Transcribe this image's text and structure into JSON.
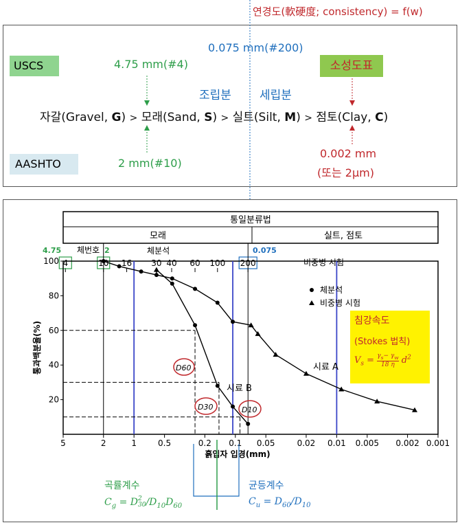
{
  "consistency_label": "연경도(軟硬度; consistency) = f(w)",
  "top_panel": {
    "sieve_200": "0.075 mm(#200)",
    "uscs_label": "USCS",
    "aashto_label": "AASHTO",
    "uscs_sieve4": "4.75 mm(#4)",
    "aashto_sieve10": "2 mm(#10)",
    "plasticity_chart": "소성도표",
    "coarse": "조립분",
    "fine": "세립분",
    "classification_line": {
      "gravel": "자갈(Gravel, ",
      "gravel_sym": "G",
      "sand": "모래(Sand, ",
      "sand_sym": "S",
      "silt": "실트(Silt, ",
      "silt_sym": "M",
      "clay": "점토(Clay, ",
      "clay_sym": "C",
      "close": ")",
      "gt": ">"
    },
    "clay_size": "0.002 mm",
    "clay_size_alt": "(또는 2μm)"
  },
  "chart_panel": {
    "unified_class": "통일분류법",
    "sand_header": "모래",
    "silt_clay_header": "실트, 점토",
    "sieve_no_label": "체번호",
    "sieve_analysis": "체분석",
    "hydrometer": "비중병 시험",
    "sieve_top_labels": [
      "4",
      "10",
      "16",
      "30",
      "40",
      "60",
      "100",
      "200"
    ],
    "annot_475": "4.75",
    "annot_2": "2",
    "annot_0075": "0.075",
    "ylabel": "통과백분율(%)",
    "xlabel": "흙입자 입경(mm)",
    "legend_sieve": "체분석",
    "legend_hydro": "비중병 시험",
    "sample_a": "시료 A",
    "sample_b": "시료 B",
    "d60": "D60",
    "d30": "D30",
    "d10": "D10",
    "stokes_title": "침강속도",
    "stokes_law": "(Stokes  법칙)"
  },
  "bottom": {
    "curvature_title": "곡률계수",
    "uniformity_title": "균등계수"
  },
  "colors": {
    "green": "#2e9e4a",
    "blue": "#1f6fbd",
    "red": "#c0282c",
    "uscs_bg": "#8fd48f",
    "aashto_bg": "#d8e9f0",
    "plasticity_bg": "#8fc84f",
    "stokes_bg": "#fff200",
    "chart_line_blue": "#3a45c8"
  },
  "chart_data": {
    "type": "line",
    "xlabel": "흙입자 입경(mm)",
    "ylabel": "통과백분율(%)",
    "x_scale": "log",
    "x_reversed": true,
    "xlim": [
      5,
      0.001
    ],
    "ylim": [
      0,
      100
    ],
    "x_ticks": [
      5,
      2,
      1,
      0.5,
      0.2,
      0.1,
      0.05,
      0.02,
      0.01,
      0.005,
      0.002,
      0.001
    ],
    "x_tick_labels": [
      "5",
      "2",
      "1",
      "0.5",
      "0.2",
      "0.1",
      "0.05",
      "0.02",
      "0.01",
      "0.005",
      "0.002",
      "0.001"
    ],
    "y_ticks": [
      20,
      40,
      60,
      80,
      100
    ],
    "series": [
      {
        "name": "시료 A",
        "sieve_points": [
          [
            2.0,
            100
          ],
          [
            1.4,
            97
          ],
          [
            0.85,
            94
          ],
          [
            0.42,
            90
          ],
          [
            0.25,
            84
          ],
          [
            0.15,
            76
          ],
          [
            0.106,
            65
          ]
        ],
        "hydrometer_points": [
          [
            0.07,
            63
          ],
          [
            0.06,
            58
          ],
          [
            0.04,
            46
          ],
          [
            0.02,
            35
          ],
          [
            0.009,
            26
          ],
          [
            0.004,
            19
          ],
          [
            0.0017,
            14
          ]
        ]
      },
      {
        "name": "시료 B",
        "sieve_points": [
          [
            0.6,
            92
          ],
          [
            0.42,
            87
          ],
          [
            0.25,
            63
          ],
          [
            0.15,
            28
          ],
          [
            0.106,
            16
          ],
          [
            0.075,
            6
          ]
        ],
        "hydrometer_points": [
          [
            0.6,
            95
          ]
        ]
      }
    ],
    "sieve_lines_mm": [
      2,
      0.075,
      4.75
    ],
    "blue_lines_mm": [
      1.0,
      0.106,
      0.01
    ],
    "dashed_levels": [
      60,
      30,
      10
    ],
    "annotations": [
      "D60",
      "D30",
      "D10",
      "시료 A",
      "시료 B"
    ]
  }
}
